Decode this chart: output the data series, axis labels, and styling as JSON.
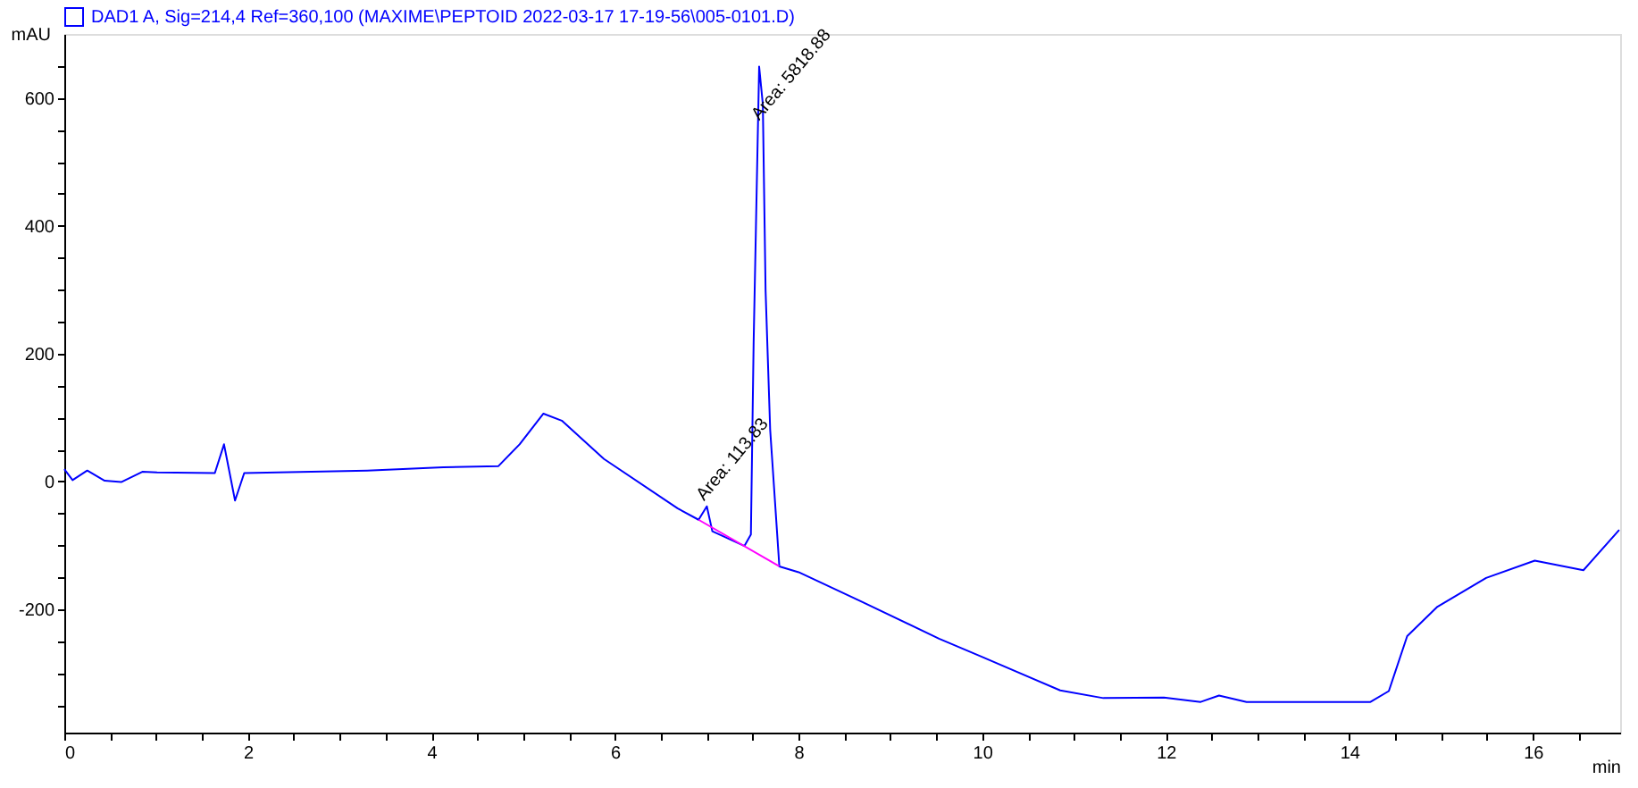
{
  "chart_data": {
    "type": "line",
    "xlabel": "min",
    "ylabel": "mAU",
    "xlim": [
      0,
      16.95
    ],
    "ylim": [
      -393,
      700
    ],
    "xticks": [
      0,
      {
        "value": 0.5,
        "label": null
      },
      {
        "value": 1,
        "label": null
      },
      {
        "value": 1.5,
        "label": null
      },
      2,
      {
        "value": 2.5,
        "label": null
      },
      {
        "value": 3,
        "label": null
      },
      {
        "value": 3.5,
        "label": null
      },
      4,
      {
        "value": 4.5,
        "label": null
      },
      {
        "value": 5,
        "label": null
      },
      {
        "value": 5.5,
        "label": null
      },
      6,
      {
        "value": 6.5,
        "label": null
      },
      {
        "value": 7,
        "label": null
      },
      {
        "value": 7.5,
        "label": null
      },
      8,
      {
        "value": 8.5,
        "label": null
      },
      {
        "value": 9,
        "label": null
      },
      {
        "value": 9.5,
        "label": null
      },
      10,
      {
        "value": 10.5,
        "label": null
      },
      {
        "value": 11,
        "label": null
      },
      {
        "value": 11.5,
        "label": null
      },
      12,
      {
        "value": 12.5,
        "label": null
      },
      {
        "value": 13,
        "label": null
      },
      {
        "value": 13.5,
        "label": null
      },
      14,
      {
        "value": 14.5,
        "label": null
      },
      {
        "value": 15,
        "label": null
      },
      {
        "value": 15.5,
        "label": null
      },
      16,
      {
        "value": 16.5,
        "label": null
      }
    ],
    "yticks": [
      {
        "value": -350,
        "label": null
      },
      {
        "value": -300,
        "label": null
      },
      {
        "value": -250,
        "label": null
      },
      -200,
      {
        "value": -150,
        "label": null
      },
      {
        "value": -100,
        "label": null
      },
      {
        "value": -50,
        "label": null
      },
      0,
      {
        "value": 50,
        "label": null
      },
      {
        "value": 100,
        "label": null
      },
      {
        "value": 150,
        "label": null
      },
      200,
      {
        "value": 250,
        "label": null
      },
      {
        "value": 300,
        "label": null
      },
      {
        "value": 350,
        "label": null
      },
      400,
      {
        "value": 450,
        "label": null
      },
      {
        "value": 500,
        "label": null
      },
      {
        "value": 550,
        "label": null
      },
      600,
      {
        "value": 650,
        "label": null
      }
    ],
    "grid": false,
    "legend": "top",
    "marker": "none",
    "line_style": "solid",
    "series": [
      {
        "name": "DAD1 A, Sig=214,4 Ref=360,100 (MAXIME\\PEPTOID 2022-03-17 17-19-56\\005-0101.D)",
        "color": "#0000ff",
        "x": [
          0,
          0.09,
          0.25,
          0.44,
          0.62,
          0.85,
          1.01,
          1.64,
          1.74,
          1.86,
          1.96,
          3.3,
          4.13,
          4.73,
          4.96,
          5.22,
          5.42,
          5.88,
          6.68,
          6.91,
          7.0,
          7.06,
          7.41,
          7.48,
          7.51,
          7.57,
          7.61,
          7.64,
          7.69,
          7.79,
          8.0,
          8.67,
          9.53,
          9.99,
          10.85,
          11.32,
          11.98,
          12.38,
          12.58,
          12.88,
          14.23,
          14.43,
          14.63,
          14.96,
          15.49,
          16.02,
          16.55,
          16.94
        ],
        "values": [
          19,
          2,
          17,
          1,
          -1,
          15,
          14,
          13,
          58,
          -30,
          13,
          17,
          22,
          24,
          58,
          106,
          95,
          35,
          -42,
          -60,
          -39,
          -78,
          -101,
          -83,
          218,
          649,
          590,
          299,
          81,
          -133,
          -142,
          -187,
          -246,
          -274,
          -327,
          -339,
          -338,
          -345,
          -335,
          -345,
          -345,
          -328,
          -242,
          -196,
          -151,
          -124,
          -139,
          -76
        ]
      },
      {
        "color": "#ff00ff",
        "x": [
          6.91,
          7.79
        ],
        "values": [
          -60,
          -133
        ]
      }
    ],
    "annotations": [
      {
        "text": "Area: 113.83",
        "x": 7.0,
        "y": -35
      },
      {
        "text": "Area: 5818.88",
        "x": 7.6,
        "y": 560
      }
    ]
  }
}
